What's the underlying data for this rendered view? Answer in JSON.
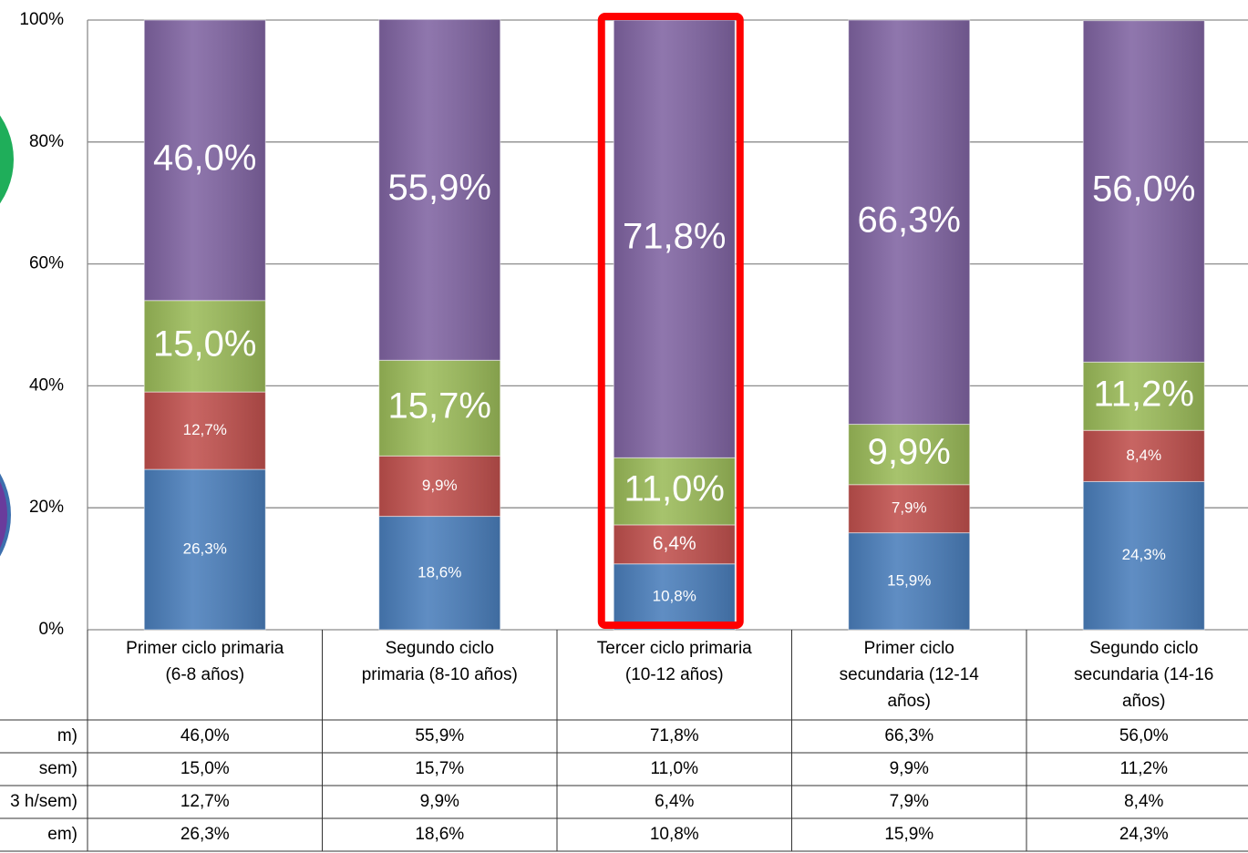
{
  "chart_data": {
    "type": "stacked_bar",
    "categories": [
      "Primer ciclo primaria (6-8 años)",
      "Segundo ciclo primaria (8-10 años)",
      "Tercer ciclo primaria (10-12 años)",
      "Primer ciclo secundaria (12-14 años)",
      "Segundo ciclo secundaria (14-16 años)"
    ],
    "series": [
      {
        "name": "em)",
        "color": "#4a7ebb",
        "values": [
          26.3,
          18.6,
          10.8,
          15.9,
          24.3
        ],
        "value_labels": [
          "26,3%",
          "18,6%",
          "10,8%",
          "15,9%",
          "24,3%"
        ]
      },
      {
        "name": "3 h/sem)",
        "color": "#c0504d",
        "values": [
          12.7,
          9.9,
          6.4,
          7.9,
          8.4
        ],
        "value_labels": [
          "12,7%",
          "9,9%",
          "6,4%",
          "7,9%",
          "8,4%"
        ]
      },
      {
        "name": "sem)",
        "color": "#9bbb59",
        "values": [
          15.0,
          15.7,
          11.0,
          9.9,
          11.2
        ],
        "value_labels": [
          "15,0%",
          "15,7%",
          "11,0%",
          "9,9%",
          "11,2%"
        ]
      },
      {
        "name": "m)",
        "color": "#8064a2",
        "values": [
          46.0,
          55.9,
          71.8,
          66.3,
          56.0
        ],
        "value_labels": [
          "46,0%",
          "55,9%",
          "71,8%",
          "66,3%",
          "56,0%"
        ]
      }
    ],
    "ylim": [
      0,
      100
    ],
    "yticks": [
      {
        "value": 0,
        "label": "0%"
      },
      {
        "value": 20,
        "label": "20%"
      },
      {
        "value": 40,
        "label": "40%"
      },
      {
        "value": 60,
        "label": "60%"
      },
      {
        "value": 80,
        "label": "80%"
      },
      {
        "value": 100,
        "label": "100%"
      }
    ],
    "grid": true
  }
}
